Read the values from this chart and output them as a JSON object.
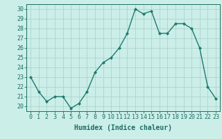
{
  "x": [
    0,
    1,
    2,
    3,
    4,
    5,
    6,
    7,
    8,
    9,
    10,
    11,
    12,
    13,
    14,
    15,
    16,
    17,
    18,
    19,
    20,
    21,
    22,
    23
  ],
  "y": [
    23,
    21.5,
    20.5,
    21,
    21,
    19.8,
    20.3,
    21.5,
    23.5,
    24.5,
    25.0,
    26.0,
    27.5,
    30.0,
    29.5,
    29.8,
    27.5,
    27.5,
    28.5,
    28.5,
    28.0,
    26.0,
    22.0,
    20.8
  ],
  "line_color": "#1a7a6e",
  "marker_color": "#1a7a6e",
  "bg_color": "#cceee8",
  "grid_color": "#aad4cc",
  "xlabel": "Humidex (Indice chaleur)",
  "xlim": [
    -0.5,
    23.5
  ],
  "ylim": [
    19.5,
    30.5
  ],
  "yticks": [
    20,
    21,
    22,
    23,
    24,
    25,
    26,
    27,
    28,
    29,
    30
  ],
  "xticks": [
    0,
    1,
    2,
    3,
    4,
    5,
    6,
    7,
    8,
    9,
    10,
    11,
    12,
    13,
    14,
    15,
    16,
    17,
    18,
    19,
    20,
    21,
    22,
    23
  ],
  "tick_color": "#1a6e62",
  "axis_color": "#1a6e62",
  "xlabel_fontsize": 7,
  "tick_fontsize": 6,
  "linewidth": 1.0,
  "markersize": 2.2
}
